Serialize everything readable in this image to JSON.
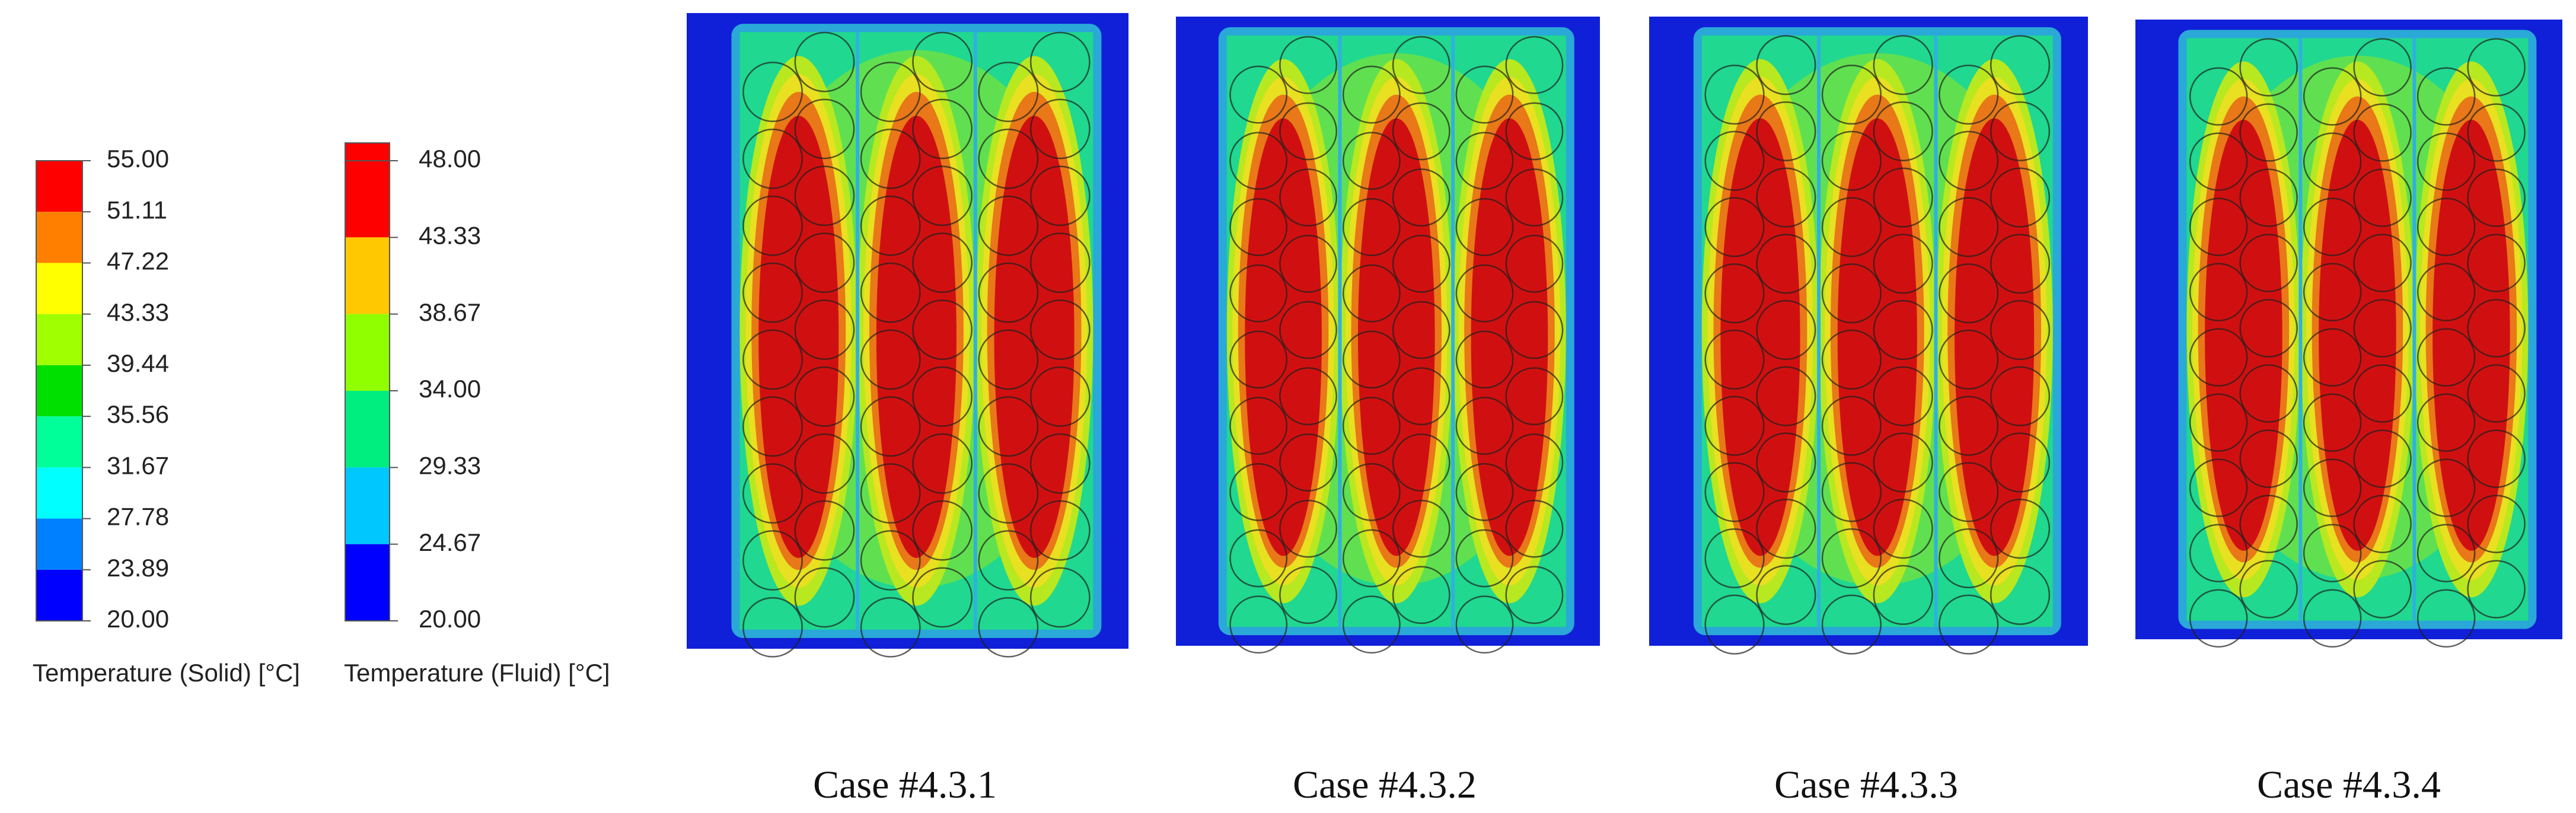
{
  "legends": [
    {
      "ticks": [
        "55.00",
        "51.11",
        "47.22",
        "43.33",
        "39.44",
        "35.56",
        "31.67",
        "27.78",
        "23.89",
        "20.00"
      ],
      "label": "Temperature (Solid) [°C]"
    },
    {
      "ticks": [
        "48.00",
        "43.33",
        "38.67",
        "34.00",
        "29.33",
        "24.67",
        "20.00"
      ],
      "label": "Temperature (Fluid) [°C]"
    }
  ],
  "cases": [
    {
      "caption": "Case #4.3.1"
    },
    {
      "caption": "Case #4.3.2"
    },
    {
      "caption": "Case #4.3.3"
    },
    {
      "caption": "Case #4.3.4"
    }
  ]
}
